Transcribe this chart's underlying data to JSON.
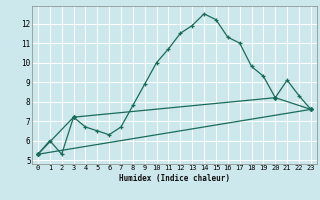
{
  "title": "",
  "xlabel": "Humidex (Indice chaleur)",
  "bg_color": "#cce8ec",
  "grid_color": "#ffffff",
  "line_color": "#1a6b5a",
  "xlim": [
    -0.5,
    23.5
  ],
  "ylim": [
    4.8,
    12.9
  ],
  "xticks": [
    0,
    1,
    2,
    3,
    4,
    5,
    6,
    7,
    8,
    9,
    10,
    11,
    12,
    13,
    14,
    15,
    16,
    17,
    18,
    19,
    20,
    21,
    22,
    23
  ],
  "yticks": [
    5,
    6,
    7,
    8,
    9,
    10,
    11,
    12
  ],
  "line1_x": [
    0,
    1,
    2,
    3,
    4,
    5,
    6,
    7,
    8,
    9,
    10,
    11,
    12,
    13,
    14,
    15,
    16,
    17,
    18,
    19,
    20,
    21,
    22,
    23
  ],
  "line1_y": [
    5.3,
    6.0,
    5.3,
    7.2,
    6.7,
    6.5,
    6.3,
    6.7,
    7.8,
    8.9,
    10.0,
    10.7,
    11.5,
    11.9,
    12.5,
    12.2,
    11.3,
    11.0,
    9.8,
    9.3,
    8.2,
    9.1,
    8.3,
    7.6
  ],
  "line2_x": [
    0,
    3,
    20,
    23
  ],
  "line2_y": [
    5.3,
    7.2,
    8.2,
    7.6
  ],
  "line3_x": [
    0,
    23
  ],
  "line3_y": [
    5.3,
    7.6
  ]
}
